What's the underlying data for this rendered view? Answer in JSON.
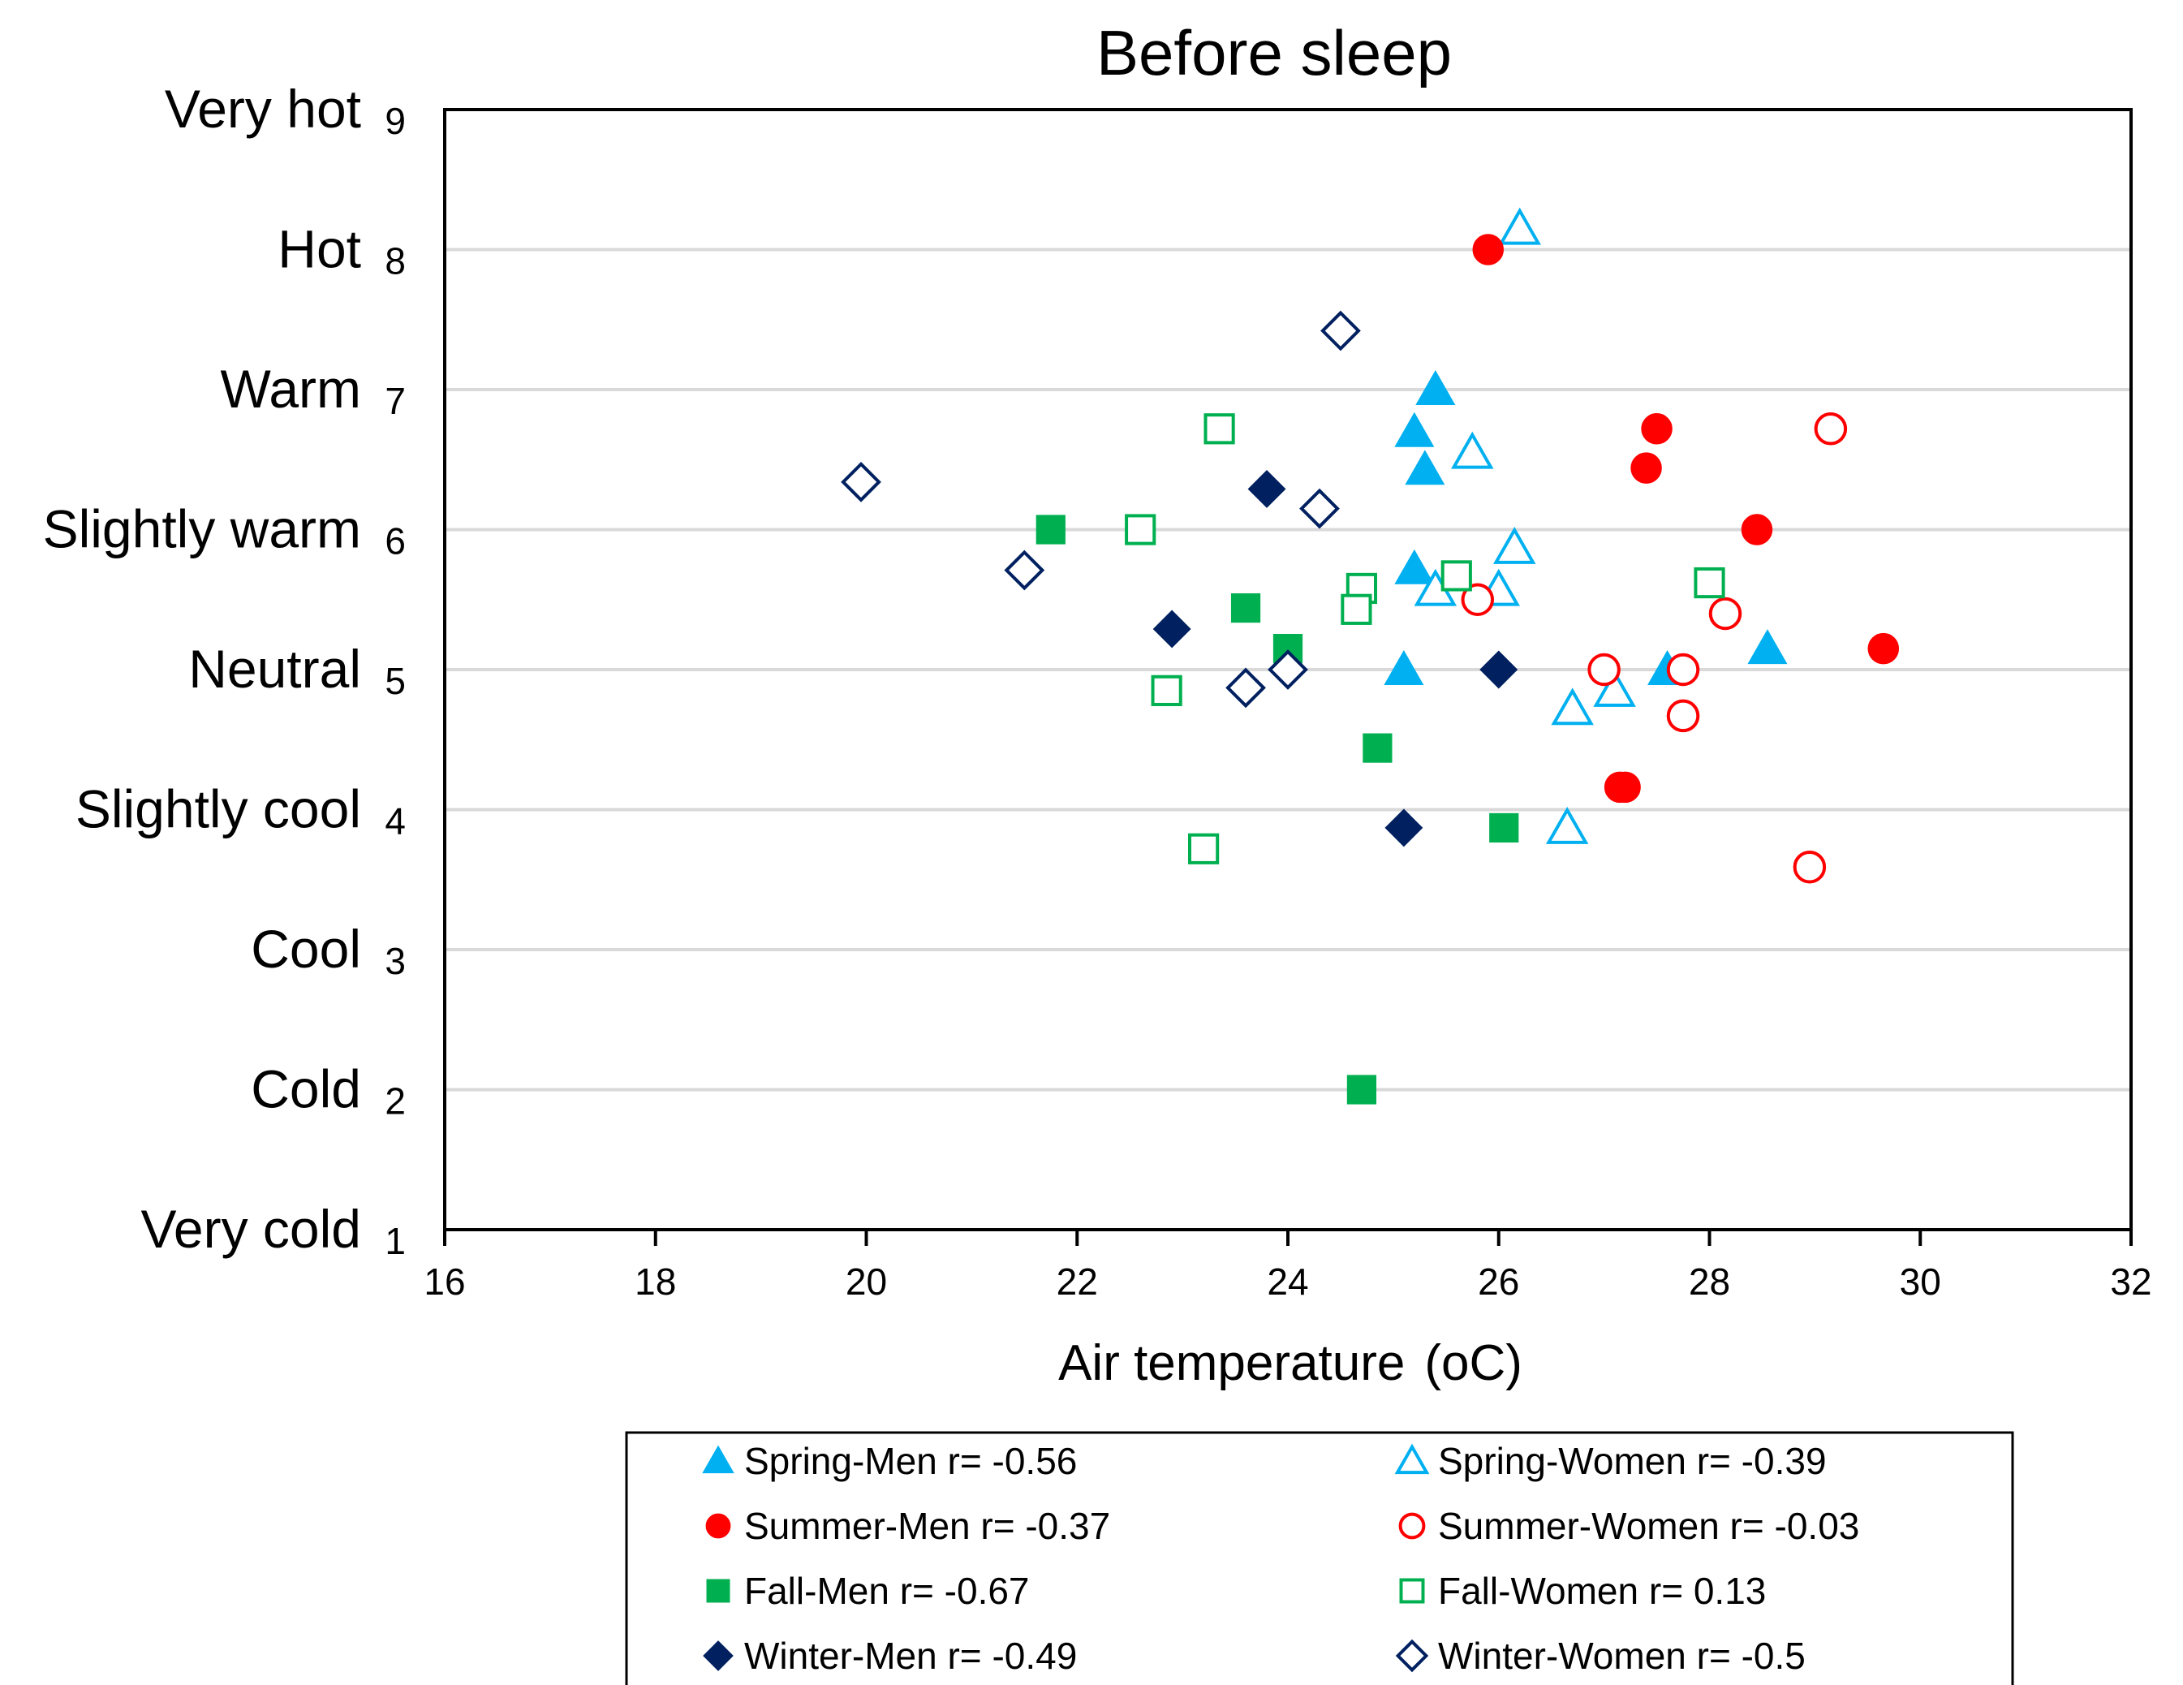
{
  "chart_data": {
    "type": "scatter",
    "title": "Before sleep",
    "xlabel": "Air temperature",
    "xlabel_unit": "(oC)",
    "xlim": [
      16,
      32
    ],
    "ylim": [
      1,
      9
    ],
    "x_ticks": [
      "16",
      "18",
      "20",
      "22",
      "24",
      "26",
      "28",
      "30",
      "32"
    ],
    "y_ticks": [
      {
        "value": 9,
        "num": "9",
        "label": "Very hot"
      },
      {
        "value": 8,
        "num": "8",
        "label": "Hot"
      },
      {
        "value": 7,
        "num": "7",
        "label": "Warm"
      },
      {
        "value": 6,
        "num": "6",
        "label": "Slightly  warm"
      },
      {
        "value": 5,
        "num": "5",
        "label": "Neutral"
      },
      {
        "value": 4,
        "num": "4",
        "label": "Slightly  cool"
      },
      {
        "value": 3,
        "num": "3",
        "label": "Cool"
      },
      {
        "value": 2,
        "num": "2",
        "label": "Cold"
      },
      {
        "value": 1,
        "num": "1",
        "label": "Very cold"
      }
    ],
    "grid": "horizontal",
    "legend_position": "bottom",
    "series": [
      {
        "name": "Spring-Men r= -0.56",
        "marker": "triangle",
        "filled": true,
        "color": "#00b0f0",
        "points": [
          [
            25.4,
            7.0
          ],
          [
            25.2,
            6.7
          ],
          [
            25.3,
            6.43
          ],
          [
            25.2,
            5.72
          ],
          [
            25.1,
            5.0
          ],
          [
            27.6,
            5.0
          ],
          [
            28.55,
            5.15
          ]
        ]
      },
      {
        "name": "Spring-Women  r= -0.39",
        "marker": "triangle",
        "filled": false,
        "color": "#00b0f0",
        "points": [
          [
            26.2,
            8.15
          ],
          [
            25.75,
            6.55
          ],
          [
            26.15,
            5.87
          ],
          [
            25.4,
            5.57
          ],
          [
            26.0,
            5.57
          ],
          [
            26.7,
            4.72
          ],
          [
            27.1,
            4.85
          ],
          [
            26.65,
            3.87
          ]
        ]
      },
      {
        "name": "Summer-Men r= -0.37",
        "marker": "circle",
        "filled": true,
        "color": "#ff0000",
        "points": [
          [
            25.9,
            8.0
          ],
          [
            27.5,
            6.72
          ],
          [
            27.4,
            6.44
          ],
          [
            28.45,
            6.0
          ],
          [
            29.65,
            5.15
          ],
          [
            27.15,
            4.16
          ],
          [
            27.2,
            4.16
          ]
        ]
      },
      {
        "name": "Summer-Women r= -0.03",
        "marker": "circle",
        "filled": false,
        "color": "#ff0000",
        "points": [
          [
            29.15,
            6.72
          ],
          [
            25.8,
            5.5
          ],
          [
            28.15,
            5.4
          ],
          [
            27.0,
            5.0
          ],
          [
            27.75,
            5.0
          ],
          [
            27.75,
            4.67
          ],
          [
            28.95,
            3.59
          ]
        ]
      },
      {
        "name": "Fall-Men r= -0.67",
        "marker": "square",
        "filled": true,
        "color": "#00b050",
        "points": [
          [
            21.75,
            6.0
          ],
          [
            23.6,
            5.44
          ],
          [
            24.0,
            5.15
          ],
          [
            24.85,
            4.44
          ],
          [
            26.05,
            3.87
          ],
          [
            24.7,
            2.0
          ]
        ]
      },
      {
        "name": "Fall-Women r= 0.13",
        "marker": "square",
        "filled": false,
        "color": "#00b050",
        "points": [
          [
            23.35,
            6.72
          ],
          [
            22.6,
            6.0
          ],
          [
            25.6,
            5.67
          ],
          [
            24.7,
            5.58
          ],
          [
            24.65,
            5.43
          ],
          [
            28.0,
            5.62
          ],
          [
            22.85,
            4.85
          ],
          [
            23.2,
            3.72
          ]
        ]
      },
      {
        "name": "Winter-Men r= -0.49",
        "marker": "diamond",
        "filled": true,
        "color": "#002060",
        "points": [
          [
            23.8,
            6.29
          ],
          [
            22.9,
            5.29
          ],
          [
            26.0,
            5.0
          ],
          [
            25.1,
            3.87
          ]
        ]
      },
      {
        "name": "Winter-Women r= -0.5",
        "marker": "diamond",
        "filled": false,
        "color": "#002060",
        "points": [
          [
            24.5,
            7.42
          ],
          [
            19.95,
            6.34
          ],
          [
            24.3,
            6.15
          ],
          [
            21.5,
            5.71
          ],
          [
            23.6,
            4.87
          ],
          [
            24.0,
            5.0
          ]
        ]
      }
    ]
  }
}
